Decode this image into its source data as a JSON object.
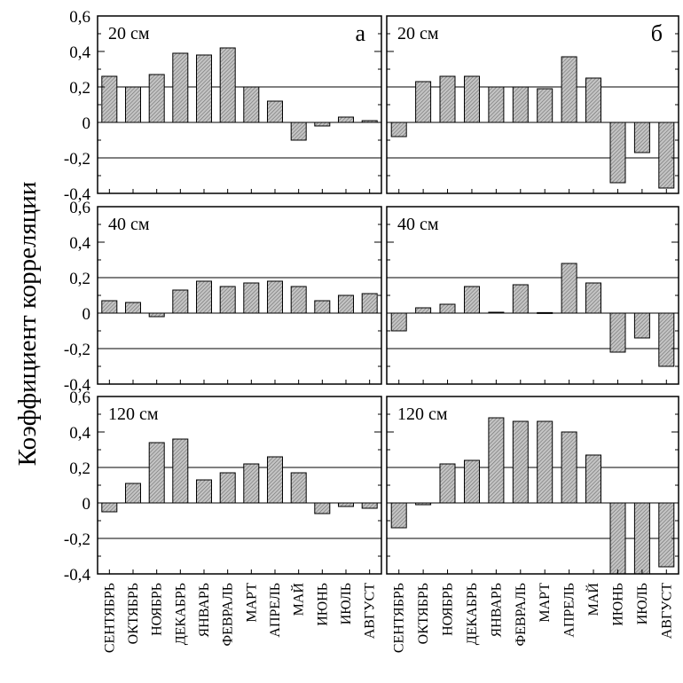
{
  "chart_data": {
    "type": "bar",
    "ylabel": "Коэффициент корреляции",
    "ylim": [
      -0.4,
      0.6
    ],
    "yticks": [
      0.6,
      0.4,
      0.2,
      0,
      -0.2,
      -0.4
    ],
    "ytick_labels": [
      "0,6",
      "0,4",
      "0,2",
      "0",
      "-0,2",
      "-0,4"
    ],
    "gridlines": [
      0.2,
      -0.2
    ],
    "categories": [
      "СЕНТЯБРЬ",
      "ОКТЯБРЬ",
      "НОЯБРЬ",
      "ДЕКАБРЬ",
      "ЯНВАРЬ",
      "ФЕВРАЛЬ",
      "МАРТ",
      "АПРЕЛЬ",
      "МАЙ",
      "ИЮНЬ",
      "ИЮЛЬ",
      "АВГУСТ"
    ],
    "bar_color": "#9a9a9a",
    "columns": [
      {
        "letter": "а",
        "panels": [
          {
            "depth": "20 см",
            "values": [
              0.26,
              0.2,
              0.27,
              0.39,
              0.38,
              0.42,
              0.2,
              0.12,
              -0.1,
              -0.02,
              0.03,
              0.01
            ]
          },
          {
            "depth": "40 см",
            "values": [
              0.07,
              0.06,
              -0.02,
              0.13,
              0.18,
              0.15,
              0.17,
              0.18,
              0.15,
              0.07,
              0.1,
              0.11
            ]
          },
          {
            "depth": "120 см",
            "values": [
              -0.05,
              0.11,
              0.34,
              0.36,
              0.13,
              0.17,
              0.22,
              0.26,
              0.17,
              -0.06,
              -0.02,
              -0.03
            ]
          }
        ]
      },
      {
        "letter": "б",
        "panels": [
          {
            "depth": "20 см",
            "values": [
              -0.08,
              0.23,
              0.26,
              0.26,
              0.2,
              0.2,
              0.19,
              0.37,
              0.25,
              -0.34,
              -0.17,
              -0.37
            ]
          },
          {
            "depth": "40 см",
            "values": [
              -0.1,
              0.03,
              0.05,
              0.15,
              0.005,
              0.16,
              0.003,
              0.28,
              0.17,
              -0.22,
              -0.14,
              -0.3
            ]
          },
          {
            "depth": "120 см",
            "values": [
              -0.14,
              -0.01,
              0.22,
              0.24,
              0.48,
              0.46,
              0.46,
              0.4,
              0.27,
              -0.4,
              -0.4,
              -0.36
            ]
          }
        ]
      }
    ]
  }
}
